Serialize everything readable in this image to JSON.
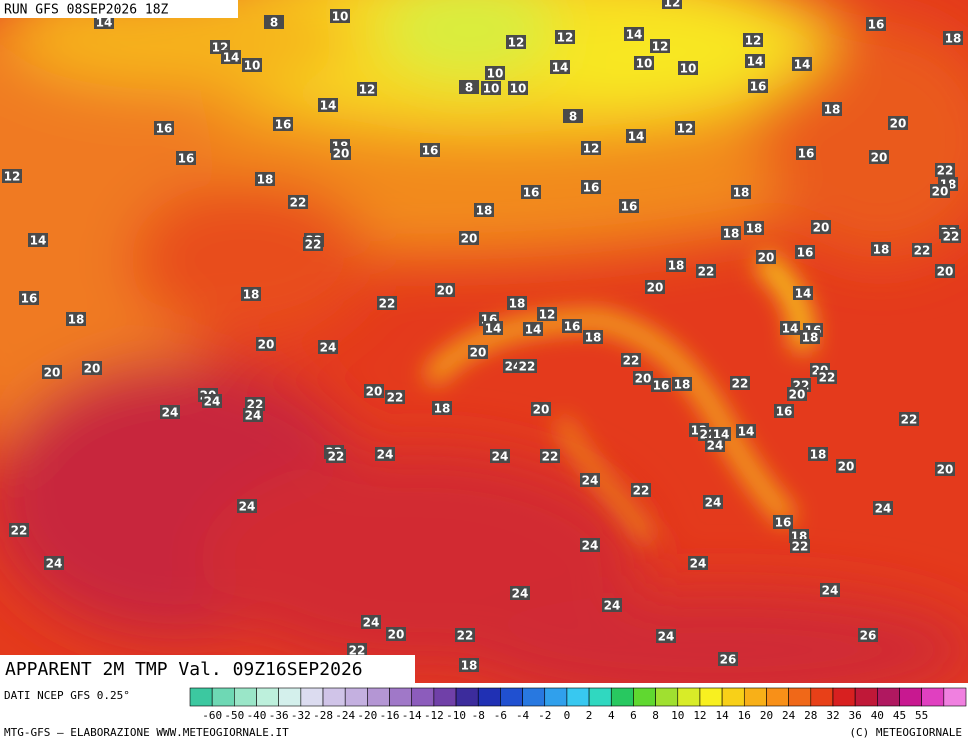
{
  "header": {
    "run": "RUN GFS 08SEP2026 18Z",
    "title": "APPARENT 2M TMP Val. 09Z16SEP2026"
  },
  "footer": {
    "source": "DATI NCEP GFS 0.25°",
    "credit": "MTG-GFS — ELABORAZIONE WWW.METEOGIORNALE.IT",
    "copyright": "(C) METEOGIORNALE"
  },
  "scale": {
    "labels": [
      -60,
      -50,
      -40,
      -36,
      -32,
      -28,
      -24,
      -20,
      -16,
      -14,
      -12,
      -10,
      -8,
      -6,
      -4,
      -2,
      0,
      2,
      4,
      6,
      8,
      10,
      12,
      14,
      16,
      20,
      24,
      28,
      32,
      36,
      40,
      45,
      55
    ],
    "colors": [
      "#3cc8a0",
      "#6ed8b4",
      "#9ae6c8",
      "#bdf0dc",
      "#d4f0ec",
      "#dcdcf0",
      "#d0c4e8",
      "#c4b0e0",
      "#b496d4",
      "#a078c8",
      "#8c5cbc",
      "#7040a8",
      "#3c2c9c",
      "#2030b4",
      "#2050d0",
      "#2878e0",
      "#30a0ec",
      "#38c8f0",
      "#30d8c0",
      "#28c860",
      "#60d830",
      "#a0e030",
      "#d8ec28",
      "#f8f020",
      "#f8d018",
      "#f8b018",
      "#f89018",
      "#f06818",
      "#e84018",
      "#d82020",
      "#c01838",
      "#b01860",
      "#c81890",
      "#e040c0",
      "#f080e0"
    ]
  },
  "map": {
    "labels": [
      14,
      12,
      14,
      10,
      8,
      10,
      12,
      16,
      18,
      12,
      12,
      14,
      12,
      12,
      10,
      14,
      10,
      10,
      14,
      14,
      8,
      10,
      10,
      12,
      14,
      16,
      8,
      18,
      16,
      16,
      14,
      12,
      20,
      18,
      20,
      16,
      12,
      16,
      16,
      20,
      12,
      18,
      22,
      18,
      20,
      16,
      16,
      18,
      22,
      18,
      16,
      14,
      22,
      22,
      20,
      18,
      18,
      20,
      22,
      22,
      20,
      16,
      18,
      22,
      18,
      22,
      20,
      16,
      18,
      20,
      20,
      22,
      14,
      18,
      18,
      16,
      12,
      14,
      14,
      16,
      18,
      14,
      16,
      18,
      20,
      24,
      20,
      22,
      20,
      20,
      24,
      22,
      20,
      16,
      18,
      20,
      22,
      22,
      22,
      20,
      20,
      24,
      20,
      22,
      22,
      24,
      24,
      18,
      20,
      16,
      22,
      12,
      22,
      14,
      14,
      24,
      22,
      22,
      24,
      24,
      22,
      18,
      20,
      20,
      24,
      22,
      24,
      24,
      24,
      16,
      22,
      18,
      22,
      24,
      24,
      24,
      24,
      24,
      24,
      24,
      20,
      22,
      24,
      26,
      22,
      18,
      26
    ]
  }
}
